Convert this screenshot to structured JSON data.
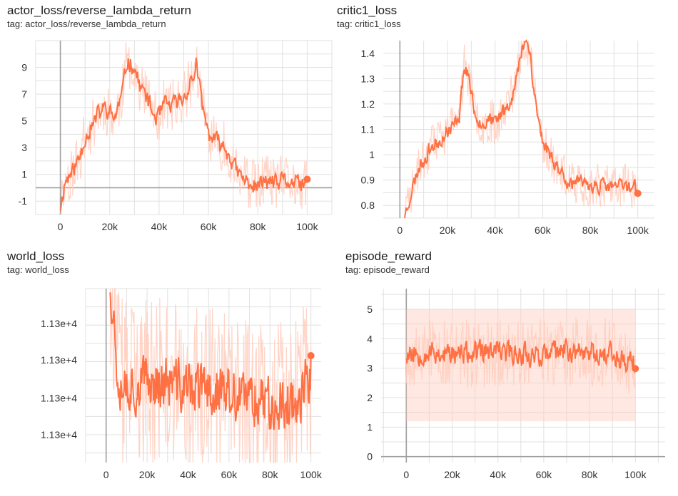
{
  "colors": {
    "series": "#ff7043",
    "series_raw": "#ffccbc",
    "grid": "#e0e0e0",
    "axis": "#9e9e9e",
    "text": "#212121"
  },
  "chart_data": [
    {
      "type": "line",
      "title": "actor_loss/reverse_lambda_return",
      "subtitle": "tag: actor_loss/reverse_lambda_return",
      "xlabel": "",
      "ylabel": "",
      "xlim": [
        -10000,
        110000
      ],
      "ylim": [
        -2.0,
        11.0
      ],
      "x_ticks": [
        0,
        20000,
        40000,
        60000,
        80000,
        100000
      ],
      "x_tick_labels": [
        "0",
        "20k",
        "40k",
        "60k",
        "80k",
        "100k"
      ],
      "y_ticks": [
        -1,
        1,
        3,
        5,
        7,
        9
      ],
      "y_tick_labels": [
        "-1",
        "1",
        "3",
        "5",
        "7",
        "9"
      ],
      "zero_line": true,
      "grid": true,
      "seed": 11,
      "noise": 0.9,
      "series": [
        {
          "x": [
            0,
            2000,
            5000,
            8000,
            10000,
            12000,
            15000,
            18000,
            20000,
            22000,
            25000,
            27000,
            30000,
            32000,
            35000,
            38000,
            40000,
            42000,
            45000,
            48000,
            50000,
            52000,
            54000,
            55000,
            56000,
            58000,
            60000,
            62000,
            65000,
            68000,
            70000,
            72000,
            75000,
            78000,
            80000,
            82000,
            85000,
            88000,
            90000,
            92000,
            95000,
            98000,
            100000
          ],
          "y": [
            -1.4,
            0.5,
            1.2,
            2.4,
            3.8,
            4.3,
            5.4,
            6.0,
            5.6,
            5.2,
            7.0,
            9.5,
            9.0,
            7.7,
            6.8,
            5.3,
            5.3,
            6.2,
            6.1,
            6.5,
            6.7,
            7.6,
            8.2,
            9.6,
            7.8,
            5.7,
            4.0,
            3.6,
            3.3,
            2.6,
            1.8,
            1.0,
            0.5,
            0.2,
            0.1,
            0.4,
            0.5,
            0.2,
            0.6,
            0.4,
            0.3,
            0.2,
            0.2
          ]
        }
      ]
    },
    {
      "type": "line",
      "title": "critic1_loss",
      "subtitle": "tag: critic1_loss",
      "xlabel": "",
      "ylabel": "",
      "xlim": [
        -7000,
        107000
      ],
      "ylim": [
        0.75,
        1.45
      ],
      "x_ticks": [
        0,
        20000,
        40000,
        60000,
        80000,
        100000
      ],
      "x_tick_labels": [
        "0",
        "20k",
        "40k",
        "60k",
        "80k",
        "100k"
      ],
      "y_ticks": [
        0.8,
        0.9,
        1.0,
        1.1,
        1.2,
        1.3,
        1.4
      ],
      "y_tick_labels": [
        "0.8",
        "0.9",
        "1",
        "1.1",
        "1.2",
        "1.3",
        "1.4"
      ],
      "zero_line": false,
      "grid": true,
      "seed": 23,
      "noise": 0.04,
      "series": [
        {
          "x": [
            2000,
            5000,
            8000,
            10000,
            13000,
            15000,
            18000,
            20000,
            23000,
            25000,
            26000,
            27000,
            29000,
            30000,
            32000,
            35000,
            38000,
            40000,
            43000,
            45000,
            48000,
            50000,
            52000,
            53000,
            54000,
            55000,
            56000,
            58000,
            60000,
            62000,
            65000,
            68000,
            70000,
            72000,
            75000,
            80000,
            85000,
            90000,
            95000,
            100000
          ],
          "y": [
            0.76,
            0.86,
            0.95,
            0.98,
            1.03,
            1.04,
            1.07,
            1.09,
            1.12,
            1.16,
            1.26,
            1.35,
            1.31,
            1.24,
            1.15,
            1.12,
            1.14,
            1.12,
            1.17,
            1.19,
            1.25,
            1.35,
            1.44,
            1.47,
            1.42,
            1.39,
            1.28,
            1.15,
            1.05,
            1.02,
            0.97,
            0.93,
            0.9,
            0.89,
            0.885,
            0.88,
            0.875,
            0.875,
            0.878,
            0.873
          ]
        }
      ]
    },
    {
      "type": "line",
      "title": "world_loss",
      "subtitle": "tag: world_loss",
      "xlabel": "",
      "ylabel": "",
      "xlim": [
        -10000,
        105000
      ],
      "ylim": [
        0,
        1
      ],
      "x_ticks": [
        0,
        20000,
        40000,
        60000,
        80000,
        100000
      ],
      "x_tick_labels": [
        "0",
        "20k",
        "40k",
        "60k",
        "80k",
        "100k"
      ],
      "y_ticks": [
        0.16,
        0.37,
        0.59,
        0.8
      ],
      "y_tick_labels": [
        "1.13e+4",
        "1.13e+4",
        "1.13e+4",
        "1.13e+4"
      ],
      "zero_line": false,
      "grid": true,
      "seed": 37,
      "noise": 0.22,
      "series": [
        {
          "x": [
            2000,
            3000,
            4000,
            5000,
            6000,
            8000,
            10000,
            15000,
            20000,
            25000,
            30000,
            35000,
            40000,
            45000,
            50000,
            55000,
            60000,
            65000,
            70000,
            75000,
            80000,
            85000,
            90000,
            95000,
            100000
          ],
          "y": [
            1.05,
            0.92,
            0.78,
            0.62,
            0.5,
            0.47,
            0.46,
            0.44,
            0.46,
            0.47,
            0.45,
            0.44,
            0.43,
            0.42,
            0.41,
            0.42,
            0.38,
            0.35,
            0.37,
            0.38,
            0.35,
            0.34,
            0.35,
            0.38,
            0.5
          ]
        }
      ]
    },
    {
      "type": "line",
      "title": "episode_reward",
      "subtitle": "tag: episode_reward",
      "xlabel": "",
      "ylabel": "",
      "xlim": [
        -11000,
        113000
      ],
      "ylim": [
        -0.2,
        5.7
      ],
      "x_ticks": [
        0,
        20000,
        40000,
        60000,
        80000,
        100000
      ],
      "x_tick_labels": [
        "0",
        "20k",
        "40k",
        "60k",
        "80k",
        "100k"
      ],
      "y_ticks": [
        0,
        1,
        2,
        3,
        4,
        5
      ],
      "y_tick_labels": [
        "0",
        "1",
        "2",
        "3",
        "4",
        "5"
      ],
      "zero_line": true,
      "grid": true,
      "seed": 53,
      "noise": 0.55,
      "raw_band": [
        1.2,
        5.0
      ],
      "series": [
        {
          "x": [
            0,
            10000,
            20000,
            30000,
            40000,
            50000,
            60000,
            70000,
            80000,
            90000,
            100000
          ],
          "y": [
            3.5,
            3.55,
            3.45,
            3.5,
            3.55,
            3.5,
            3.45,
            3.6,
            3.55,
            3.5,
            3.1
          ]
        }
      ]
    }
  ]
}
